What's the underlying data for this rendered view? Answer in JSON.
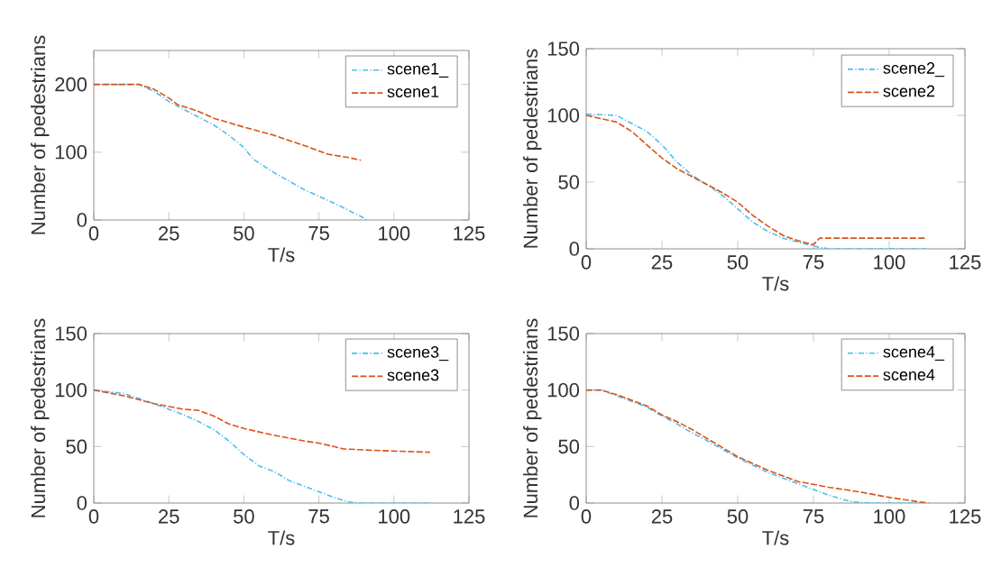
{
  "chart_data": [
    {
      "type": "line",
      "xlabel": "T/s",
      "ylabel": "Number of pedestrians",
      "xlim": [
        0,
        125
      ],
      "xticks": [
        0,
        25,
        50,
        75,
        100,
        125
      ],
      "ylim": [
        0,
        250
      ],
      "yticks": [
        0,
        100,
        200
      ],
      "legend": "top right",
      "marker": "none",
      "grid": false,
      "series": [
        {
          "name": "scene1_",
          "color": "#4dbeee",
          "line_style": "dashdot",
          "x": [
            0,
            15,
            20,
            25,
            30,
            40,
            45,
            50,
            53,
            60,
            70,
            80,
            90,
            91
          ],
          "values": [
            200,
            200,
            190,
            175,
            163,
            140,
            125,
            107,
            90,
            70,
            45,
            25,
            3,
            0
          ]
        },
        {
          "name": "scene1",
          "color": "#d95319",
          "line_style": "dashed",
          "x": [
            0,
            15,
            20,
            25,
            28,
            35,
            40,
            50,
            60,
            70,
            78,
            85,
            89
          ],
          "values": [
            200,
            200,
            193,
            180,
            170,
            160,
            150,
            137,
            125,
            110,
            97,
            92,
            88
          ]
        }
      ]
    },
    {
      "type": "line",
      "xlabel": "T/s",
      "ylabel": "Number of pedestrians",
      "xlim": [
        0,
        125
      ],
      "xticks": [
        0,
        25,
        50,
        75,
        100,
        125
      ],
      "ylim": [
        0,
        150
      ],
      "yticks": [
        0,
        50,
        100,
        150
      ],
      "legend": "top right",
      "marker": "none",
      "grid": false,
      "series": [
        {
          "name": "scene2_",
          "color": "#4dbeee",
          "line_style": "dashdot",
          "x": [
            0,
            10,
            20,
            25,
            30,
            35,
            40,
            45,
            50,
            55,
            60,
            65,
            70,
            75,
            80,
            112
          ],
          "values": [
            101,
            100,
            88,
            78,
            65,
            55,
            48,
            40,
            30,
            20,
            13,
            8,
            5,
            2,
            0,
            0
          ]
        },
        {
          "name": "scene2",
          "color": "#d95319",
          "line_style": "dashed",
          "x": [
            0,
            10,
            15,
            20,
            25,
            30,
            35,
            40,
            45,
            50,
            55,
            60,
            65,
            70,
            75,
            77,
            112
          ],
          "values": [
            100,
            95,
            88,
            78,
            68,
            60,
            54,
            48,
            42,
            35,
            25,
            17,
            10,
            6,
            3,
            8,
            8
          ]
        }
      ]
    },
    {
      "type": "line",
      "xlabel": "T/s",
      "ylabel": "Number of pedestrians",
      "xlim": [
        0,
        125
      ],
      "xticks": [
        0,
        25,
        50,
        75,
        100,
        125
      ],
      "ylim": [
        0,
        150
      ],
      "yticks": [
        0,
        50,
        100,
        150
      ],
      "legend": "top right",
      "marker": "none",
      "grid": false,
      "series": [
        {
          "name": "scene3_",
          "color": "#4dbeee",
          "line_style": "dashdot",
          "x": [
            0,
            10,
            20,
            30,
            35,
            40,
            45,
            50,
            55,
            60,
            65,
            70,
            75,
            80,
            85,
            88,
            112
          ],
          "values": [
            100,
            97,
            88,
            78,
            72,
            65,
            55,
            43,
            33,
            28,
            20,
            15,
            10,
            5,
            1,
            0,
            0
          ]
        },
        {
          "name": "scene3",
          "color": "#d95319",
          "line_style": "dashed",
          "x": [
            0,
            10,
            20,
            30,
            35,
            40,
            45,
            50,
            60,
            70,
            75,
            80,
            83,
            90,
            100,
            112
          ],
          "values": [
            100,
            95,
            88,
            83,
            82,
            77,
            70,
            66,
            60,
            55,
            53,
            50,
            48,
            47,
            46,
            45
          ]
        }
      ]
    },
    {
      "type": "line",
      "xlabel": "T/s",
      "ylabel": "Number of pedestrians",
      "xlim": [
        0,
        125
      ],
      "xticks": [
        0,
        25,
        50,
        75,
        100,
        125
      ],
      "ylim": [
        0,
        150
      ],
      "yticks": [
        0,
        50,
        100,
        150
      ],
      "legend": "top right",
      "marker": "none",
      "grid": false,
      "series": [
        {
          "name": "scene4_",
          "color": "#4dbeee",
          "line_style": "dashdot",
          "x": [
            0,
            5,
            10,
            20,
            25,
            30,
            35,
            40,
            50,
            60,
            70,
            75,
            80,
            85,
            88,
            95,
            112
          ],
          "values": [
            100,
            100,
            95,
            85,
            77,
            70,
            62,
            55,
            40,
            27,
            17,
            12,
            7,
            3,
            1,
            0,
            0
          ]
        },
        {
          "name": "scene4",
          "color": "#d95319",
          "line_style": "dashed",
          "x": [
            0,
            5,
            10,
            20,
            25,
            30,
            35,
            40,
            50,
            60,
            70,
            80,
            90,
            100,
            105,
            110,
            113
          ],
          "values": [
            100,
            100,
            96,
            86,
            78,
            72,
            65,
            57,
            41,
            29,
            19,
            14,
            10,
            5,
            3,
            1,
            0
          ]
        }
      ]
    }
  ]
}
